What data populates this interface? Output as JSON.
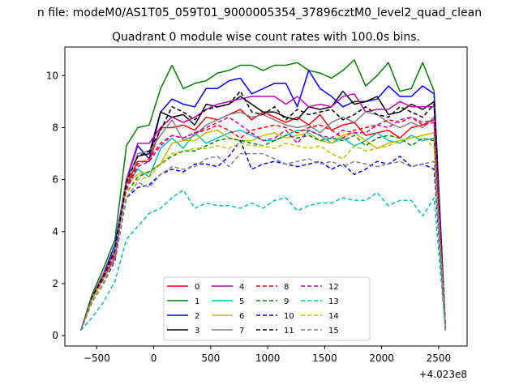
{
  "suptitle": "n file: modeM0/AS1T05_059T01_9000005354_37896cztM0_level2_quad_clean",
  "chart_data": {
    "type": "line",
    "title": "Quadrant 0 module wise count rates with 100.0s bins.",
    "xlabel": "",
    "ylabel": "",
    "x_offset_label": "+4.023e8",
    "xlim": [
      -780,
      2750
    ],
    "ylim": [
      -0.4,
      11.1
    ],
    "xticks": [
      -500,
      0,
      500,
      1000,
      1500,
      2000,
      2500
    ],
    "xtick_labels": [
      "−500",
      "0",
      "500",
      "1000",
      "1500",
      "2000",
      "2500"
    ],
    "yticks": [
      0,
      2,
      4,
      6,
      8,
      10
    ],
    "ytick_labels": [
      "0",
      "2",
      "4",
      "6",
      "8",
      "10"
    ],
    "grid": false,
    "legend_placement": "bottom-center",
    "legend_columns": 4,
    "x": [
      -640,
      -540,
      -440,
      -340,
      -240,
      -140,
      -40,
      60,
      160,
      260,
      360,
      460,
      560,
      660,
      760,
      860,
      960,
      1060,
      1160,
      1260,
      1360,
      1460,
      1560,
      1660,
      1760,
      1860,
      1960,
      2060,
      2160,
      2260,
      2360,
      2460,
      2560
    ],
    "series": [
      {
        "name": "0",
        "color": "#ff0000",
        "dash": "solid",
        "values": [
          0.2,
          1.5,
          2.2,
          3.0,
          5.8,
          6.7,
          6.7,
          8.0,
          8.0,
          8.1,
          7.9,
          8.4,
          8.3,
          8.5,
          8.7,
          8.3,
          8.6,
          8.4,
          8.2,
          8.4,
          8.1,
          8.5,
          7.9,
          8.1,
          8.2,
          7.7,
          7.8,
          7.9,
          7.6,
          8.0,
          8.1,
          8.3,
          0.2
        ]
      },
      {
        "name": "1",
        "color": "#008000",
        "dash": "solid",
        "values": [
          0.2,
          1.6,
          2.6,
          3.7,
          7.3,
          8.0,
          8.1,
          9.5,
          10.4,
          9.5,
          9.7,
          9.8,
          10.1,
          10.2,
          10.4,
          10.4,
          10.2,
          10.4,
          10.4,
          10.5,
          10.2,
          10.1,
          9.9,
          10.2,
          10.6,
          9.6,
          10.0,
          10.5,
          9.4,
          9.5,
          10.5,
          9.4,
          0.3
        ]
      },
      {
        "name": "2",
        "color": "#0000ff",
        "dash": "solid",
        "values": [
          0.2,
          1.5,
          2.4,
          3.5,
          6.0,
          7.3,
          6.8,
          8.6,
          9.1,
          8.9,
          8.8,
          9.5,
          9.5,
          9.8,
          9.9,
          9.3,
          9.5,
          9.7,
          9.7,
          8.8,
          10.2,
          9.5,
          9.2,
          8.8,
          9.0,
          9.0,
          9.1,
          9.6,
          9.2,
          9.2,
          9.6,
          9.3,
          0.3
        ]
      },
      {
        "name": "3",
        "color": "#000000",
        "dash": "solid",
        "values": [
          0.2,
          1.5,
          2.3,
          3.2,
          6.0,
          6.9,
          7.0,
          8.6,
          8.4,
          8.5,
          8.1,
          8.9,
          8.8,
          8.9,
          9.2,
          8.9,
          8.6,
          8.6,
          8.4,
          8.3,
          8.8,
          8.7,
          8.8,
          9.4,
          8.9,
          9.0,
          9.2,
          8.5,
          8.6,
          8.9,
          8.7,
          9.0,
          0.3
        ]
      },
      {
        "name": "4",
        "color": "#bf00bf",
        "dash": "solid",
        "values": [
          0.2,
          1.5,
          2.4,
          3.3,
          6.0,
          7.4,
          7.4,
          8.0,
          8.4,
          8.2,
          8.4,
          8.7,
          8.9,
          9.0,
          9.1,
          9.2,
          9.2,
          9.2,
          8.9,
          9.2,
          8.8,
          8.9,
          8.8,
          9.2,
          9.3,
          8.6,
          8.7,
          8.7,
          9.0,
          8.8,
          8.8,
          8.8,
          0.3
        ]
      },
      {
        "name": "5",
        "color": "#00bfbf",
        "dash": "solid",
        "values": [
          0.2,
          1.4,
          2.2,
          3.2,
          5.8,
          6.4,
          6.1,
          7.2,
          7.6,
          7.2,
          7.8,
          7.4,
          7.6,
          7.8,
          7.9,
          7.7,
          7.5,
          7.5,
          7.7,
          7.9,
          7.9,
          7.7,
          7.4,
          7.6,
          7.3,
          7.5,
          7.8,
          7.5,
          7.4,
          7.7,
          7.5,
          7.6,
          0.3
        ]
      },
      {
        "name": "6",
        "color": "#bfbf00",
        "dash": "solid",
        "values": [
          0.2,
          1.4,
          2.2,
          3.2,
          5.8,
          6.2,
          6.3,
          6.6,
          7.4,
          7.5,
          7.5,
          7.8,
          7.9,
          7.6,
          7.5,
          7.5,
          7.7,
          7.8,
          7.6,
          7.7,
          7.8,
          7.5,
          7.4,
          7.7,
          7.8,
          7.5,
          7.2,
          7.4,
          7.5,
          7.6,
          7.7,
          7.8,
          0.3
        ]
      },
      {
        "name": "7",
        "color": "#808080",
        "dash": "solid",
        "values": [
          0.2,
          1.5,
          2.3,
          3.3,
          5.9,
          7.0,
          7.1,
          7.7,
          8.3,
          7.5,
          7.7,
          8.1,
          8.3,
          8.5,
          8.6,
          8.4,
          8.5,
          8.3,
          8.1,
          8.0,
          8.1,
          7.8,
          8.2,
          8.4,
          8.2,
          8.6,
          8.5,
          8.2,
          8.0,
          8.2,
          8.0,
          8.4,
          0.3
        ]
      },
      {
        "name": "8",
        "color": "#ff0000",
        "dash": "dashed",
        "values": [
          0.2,
          1.5,
          2.3,
          3.2,
          5.7,
          6.6,
          6.8,
          7.4,
          7.7,
          7.6,
          7.8,
          7.9,
          8.1,
          7.9,
          7.6,
          7.9,
          8.0,
          8.1,
          8.0,
          7.8,
          8.0,
          8.1,
          7.9,
          7.6,
          7.9,
          8.0,
          8.1,
          8.3,
          8.2,
          8.4,
          8.1,
          8.2,
          0.3
        ]
      },
      {
        "name": "9",
        "color": "#008000",
        "dash": "dashed",
        "values": [
          0.2,
          1.4,
          2.2,
          3.0,
          5.5,
          6.1,
          6.3,
          6.6,
          6.9,
          7.1,
          7.1,
          7.3,
          7.5,
          7.6,
          7.5,
          7.4,
          7.3,
          7.5,
          7.7,
          7.6,
          7.7,
          7.5,
          7.6,
          7.5,
          7.7,
          7.3,
          7.6,
          7.7,
          7.6,
          7.3,
          7.6,
          7.5,
          0.2
        ]
      },
      {
        "name": "10",
        "color": "#0000ff",
        "dash": "dashed",
        "values": [
          0.2,
          1.3,
          2.0,
          2.9,
          5.3,
          5.7,
          5.8,
          6.2,
          6.4,
          6.3,
          6.6,
          6.6,
          6.5,
          6.9,
          7.5,
          6.4,
          6.6,
          6.7,
          6.6,
          6.5,
          6.6,
          6.7,
          6.4,
          6.6,
          6.2,
          6.4,
          6.7,
          6.6,
          6.9,
          6.5,
          6.6,
          6.4,
          0.2
        ]
      },
      {
        "name": "11",
        "color": "#000000",
        "dash": "dashed",
        "values": [
          0.2,
          1.5,
          2.3,
          3.3,
          5.9,
          6.9,
          7.1,
          7.9,
          8.8,
          8.6,
          8.3,
          8.7,
          8.8,
          8.9,
          9.4,
          8.6,
          8.5,
          8.8,
          8.3,
          8.7,
          8.5,
          8.6,
          8.7,
          8.3,
          8.5,
          8.8,
          8.5,
          8.4,
          8.8,
          8.6,
          8.4,
          8.9,
          0.3
        ]
      },
      {
        "name": "12",
        "color": "#bf00bf",
        "dash": "dashed",
        "values": [
          0.2,
          1.4,
          2.2,
          3.1,
          5.6,
          6.5,
          6.7,
          7.3,
          7.7,
          7.6,
          7.8,
          8.0,
          8.2,
          8.4,
          8.1,
          7.8,
          7.5,
          7.6,
          7.9,
          7.4,
          7.9,
          7.7,
          7.6,
          7.9,
          7.8,
          7.8,
          8.1,
          8.0,
          8.3,
          8.4,
          8.2,
          8.3,
          0.3
        ]
      },
      {
        "name": "13",
        "color": "#00bfbf",
        "dash": "dashed",
        "values": [
          0.2,
          0.7,
          1.3,
          2.1,
          3.7,
          4.2,
          4.7,
          4.9,
          5.3,
          5.6,
          4.9,
          5.1,
          5.0,
          5.0,
          4.9,
          5.1,
          4.9,
          5.2,
          5.3,
          4.8,
          5.0,
          5.1,
          5.1,
          5.3,
          5.2,
          5.2,
          5.5,
          5.0,
          5.2,
          5.2,
          4.6,
          5.3,
          0.2
        ]
      },
      {
        "name": "14",
        "color": "#bfbf00",
        "dash": "dashed",
        "values": [
          0.2,
          1.4,
          2.1,
          3.0,
          5.5,
          6.0,
          6.1,
          6.6,
          7.0,
          7.1,
          7.2,
          7.2,
          7.3,
          7.2,
          7.4,
          7.3,
          7.3,
          7.2,
          7.4,
          7.3,
          7.2,
          7.3,
          7.0,
          6.8,
          7.3,
          7.1,
          7.2,
          7.3,
          7.5,
          7.6,
          7.7,
          7.2,
          0.3
        ]
      },
      {
        "name": "15",
        "color": "#808080",
        "dash": "dashed",
        "values": [
          0.2,
          1.3,
          2.0,
          3.0,
          5.3,
          5.9,
          5.7,
          6.2,
          6.5,
          6.4,
          6.5,
          6.8,
          6.9,
          6.5,
          7.0,
          7.0,
          7.0,
          6.8,
          6.6,
          6.7,
          6.8,
          6.6,
          6.7,
          6.5,
          6.7,
          6.6,
          6.5,
          6.6,
          6.7,
          6.5,
          6.6,
          6.7,
          0.2
        ]
      }
    ]
  }
}
